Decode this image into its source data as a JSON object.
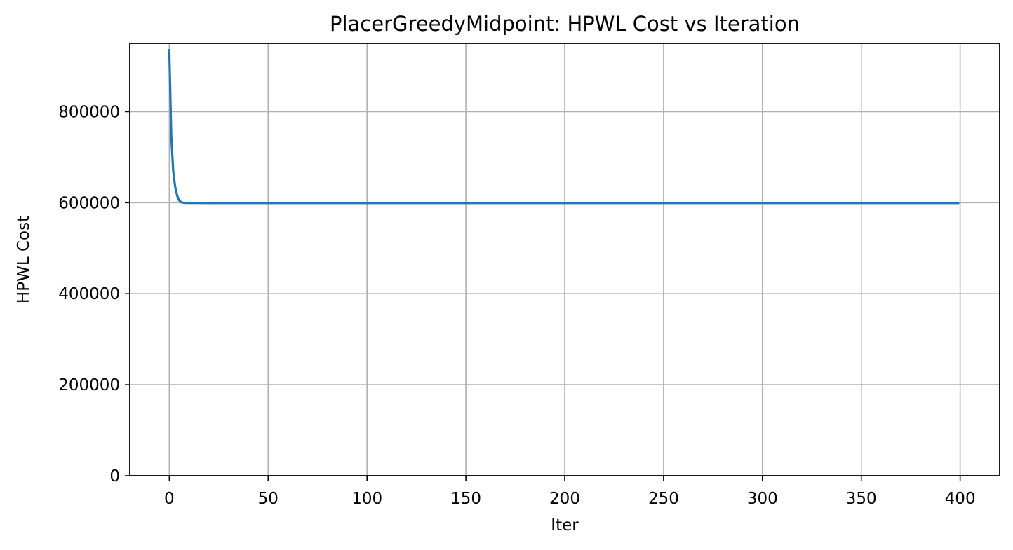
{
  "chart_data": {
    "type": "line",
    "title": "PlacerGreedyMidpoint: HPWL Cost vs Iteration",
    "xlabel": "Iter",
    "ylabel": "HPWL Cost",
    "xlim": [
      -20,
      420
    ],
    "ylim": [
      0,
      950000
    ],
    "xticks": [
      0,
      50,
      100,
      150,
      200,
      250,
      300,
      350,
      400
    ],
    "xtick_labels": [
      "0",
      "50",
      "100",
      "150",
      "200",
      "250",
      "300",
      "350",
      "400"
    ],
    "yticks": [
      0,
      200000,
      400000,
      600000,
      800000
    ],
    "ytick_labels": [
      "0",
      "200000",
      "400000",
      "600000",
      "800000"
    ],
    "grid": true,
    "legend": "none",
    "series": [
      {
        "color": "#1f77b4",
        "x": [
          0,
          1,
          2,
          3,
          4,
          5,
          6,
          7,
          8,
          10,
          20,
          50,
          100,
          150,
          200,
          250,
          300,
          350,
          399
        ],
        "y": [
          935000,
          745000,
          668000,
          634000,
          615000,
          605000,
          601000,
          600000,
          599500,
          599400,
          599300,
          599300,
          599300,
          599300,
          599300,
          599300,
          599300,
          599300,
          599300
        ]
      }
    ]
  }
}
